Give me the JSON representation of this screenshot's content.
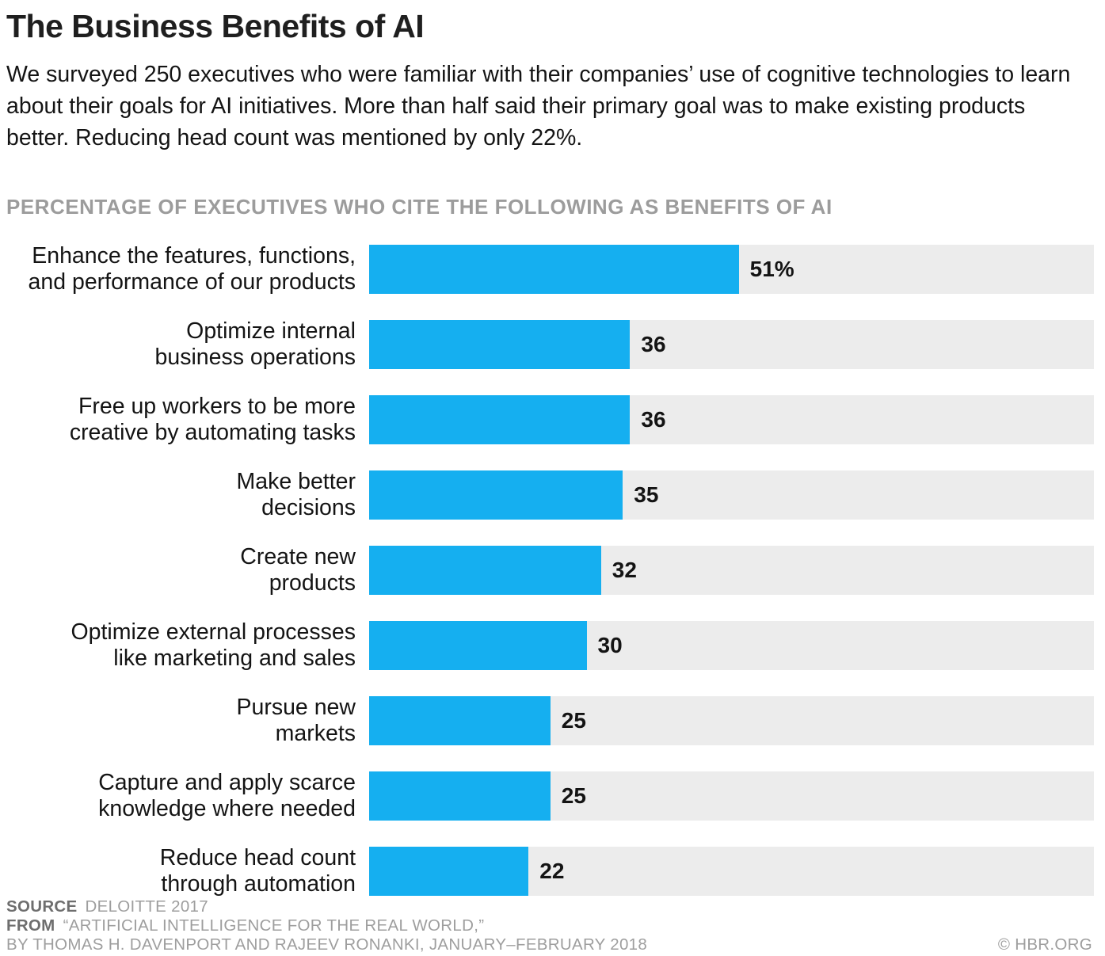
{
  "header": {
    "title": "The Business Benefits of AI",
    "subtitle": "We surveyed 250 executives who were familiar with their companies’ use of cognitive technologies to learn about their goals for AI initiatives. More than half said their primary goal was to make existing products better. Reducing head count was mentioned by only 22%."
  },
  "chart_data": {
    "type": "bar",
    "orientation": "horizontal",
    "title": "PERCENTAGE OF EXECUTIVES WHO CITE THE FOLLOWING AS BENEFITS OF AI",
    "categories": [
      [
        "Enhance the features, functions,",
        "and performance of our products"
      ],
      [
        "Optimize internal",
        "business operations"
      ],
      [
        "Free up workers to be more",
        "creative by automating tasks"
      ],
      [
        "Make better",
        "decisions"
      ],
      [
        "Create new",
        "products"
      ],
      [
        "Optimize external processes",
        "like marketing and sales"
      ],
      [
        "Pursue new",
        "markets"
      ],
      [
        "Capture and apply scarce",
        "knowledge where needed"
      ],
      [
        "Reduce head count",
        "through automation"
      ]
    ],
    "values": [
      51,
      36,
      36,
      35,
      32,
      30,
      25,
      25,
      22
    ],
    "value_labels": [
      "51%",
      "36",
      "36",
      "35",
      "32",
      "30",
      "25",
      "25",
      "22"
    ],
    "xlim": [
      0,
      100
    ],
    "bar_color": "#15aff0",
    "track_color": "#ececec",
    "grid": false,
    "legend": false
  },
  "footer": {
    "source_label": "SOURCE",
    "source_value": "DELOITTE 2017",
    "from_label": "FROM",
    "from_value": "“ARTIFICIAL INTELLIGENCE FOR THE REAL WORLD,”",
    "byline": "BY THOMAS H. DAVENPORT AND RAJEEV RONANKI, JANUARY–FEBRUARY 2018",
    "copyright": "© HBR.ORG"
  }
}
